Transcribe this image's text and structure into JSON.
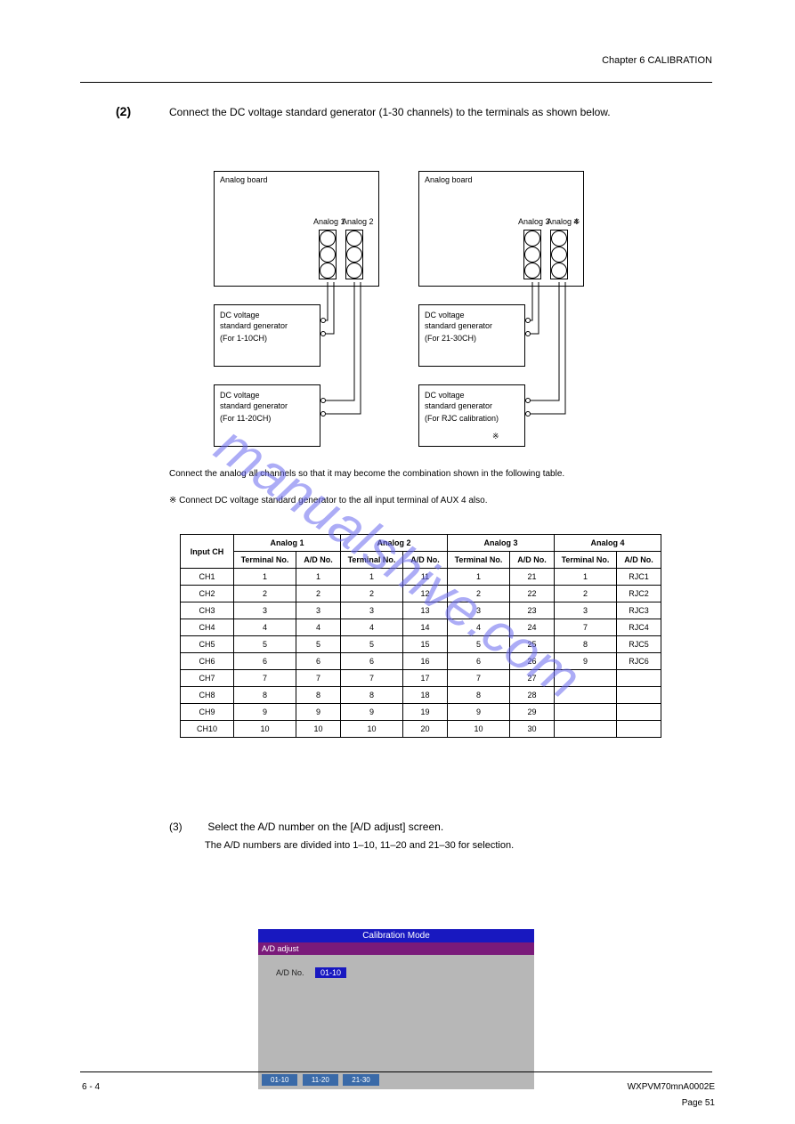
{
  "header": {
    "chapter": "Chapter 6  CALIBRATION"
  },
  "section": {
    "number": "(2)",
    "text": "Connect the DC voltage standard generator (1-30 channels) to the terminals as shown below."
  },
  "diagram": {
    "left_main": {
      "title": "Analog board"
    },
    "right_main": {
      "title": "Analog board"
    },
    "left_box1": {
      "line1": "DC voltage",
      "line2": "standard generator",
      "sub": "(For 1-10CH)"
    },
    "left_box2": {
      "line1": "DC voltage",
      "line2": "standard generator",
      "sub": "(For 11-20CH)"
    },
    "right_box1": {
      "line1": "DC voltage",
      "line2": "standard generator",
      "sub": "(For 21-30CH)"
    },
    "right_box2": {
      "line1": "DC voltage",
      "line2": "standard generator",
      "sub": "(For RJC calibration)"
    },
    "left_conn_a": "Analog 1",
    "left_conn_b": "Analog 2",
    "right_conn_a": "Analog 3",
    "right_conn_b": "Analog 4",
    "asterisk": "※"
  },
  "warn": {
    "line1": "Connect the analog all channels so that it may become the combination shown in the following table.",
    "line2": "Connect DC voltage standard generator to the all input terminal of AUX 4 also."
  },
  "table": {
    "headers": {
      "input": "Input CH",
      "a1": "Analog 1",
      "a2": "Analog 2",
      "a3": "Analog 3",
      "a4": "Analog 4",
      "terminal": "Terminal No.",
      "adno": "A/D No."
    },
    "col_widths": {
      "input": 60,
      "terminal": 70,
      "adno": 50
    },
    "rows": [
      {
        "ch": "CH1",
        "a1t": "1",
        "a1n": "1",
        "a2t": "1",
        "a2n": "11",
        "a3t": "1",
        "a3n": "21",
        "a4t": "1",
        "a4n": "RJC1"
      },
      {
        "ch": "CH2",
        "a1t": "2",
        "a1n": "2",
        "a2t": "2",
        "a2n": "12",
        "a3t": "2",
        "a3n": "22",
        "a4t": "2",
        "a4n": "RJC2"
      },
      {
        "ch": "CH3",
        "a1t": "3",
        "a1n": "3",
        "a2t": "3",
        "a2n": "13",
        "a3t": "3",
        "a3n": "23",
        "a4t": "3",
        "a4n": "RJC3"
      },
      {
        "ch": "CH4",
        "a1t": "4",
        "a1n": "4",
        "a2t": "4",
        "a2n": "14",
        "a3t": "4",
        "a3n": "24",
        "a4t": "7",
        "a4n": "RJC4"
      },
      {
        "ch": "CH5",
        "a1t": "5",
        "a1n": "5",
        "a2t": "5",
        "a2n": "15",
        "a3t": "5",
        "a3n": "25",
        "a4t": "8",
        "a4n": "RJC5"
      },
      {
        "ch": "CH6",
        "a1t": "6",
        "a1n": "6",
        "a2t": "6",
        "a2n": "16",
        "a3t": "6",
        "a3n": "26",
        "a4t": "9",
        "a4n": "RJC6"
      },
      {
        "ch": "CH7",
        "a1t": "7",
        "a1n": "7",
        "a2t": "7",
        "a2n": "17",
        "a3t": "7",
        "a3n": "27",
        "a4t": "",
        "a4n": ""
      },
      {
        "ch": "CH8",
        "a1t": "8",
        "a1n": "8",
        "a2t": "8",
        "a2n": "18",
        "a3t": "8",
        "a3n": "28",
        "a4t": "",
        "a4n": ""
      },
      {
        "ch": "CH9",
        "a1t": "9",
        "a1n": "9",
        "a2t": "9",
        "a2n": "19",
        "a3t": "9",
        "a3n": "29",
        "a4t": "",
        "a4n": ""
      },
      {
        "ch": "CH10",
        "a1t": "10",
        "a1n": "10",
        "a2t": "10",
        "a2n": "20",
        "a3t": "10",
        "a3n": "30",
        "a4t": "",
        "a4n": ""
      }
    ]
  },
  "step": {
    "num": "(3)",
    "text": "Select the A/D number on the [A/D adjust] screen.",
    "note": "The A/D numbers are divided into 1–10, 11–20 and 21–30 for selection."
  },
  "cal": {
    "title": "Calibration Mode",
    "subtitle": "A/D adjust",
    "label": "A/D No.",
    "value": "01-10",
    "buttons": [
      "01-10",
      "11-20",
      "21-30"
    ]
  },
  "footer": {
    "left": "6 - 4",
    "right": "WXPVM70mnA0002E",
    "page": "Page 51"
  },
  "watermark": "manualshive.com"
}
